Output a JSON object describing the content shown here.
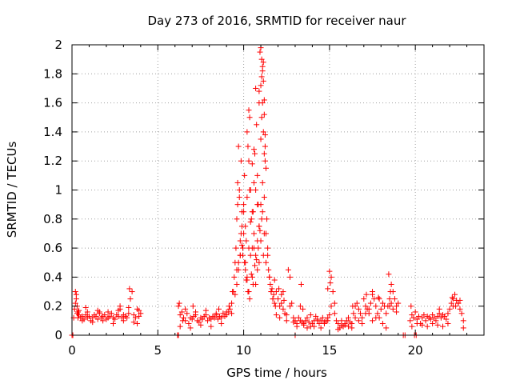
{
  "chart_data": {
    "type": "scatter",
    "title": "Day 273 of 2016, SRMTID for receiver naur",
    "xlabel": "GPS time / hours",
    "ylabel": "SRMTID / TECUs",
    "xlim": [
      0,
      24
    ],
    "ylim": [
      0,
      2
    ],
    "x_ticks": [
      "0",
      "5",
      "10",
      "15",
      "20"
    ],
    "y_ticks": [
      "0",
      "0.2",
      "0.4",
      "0.6",
      "0.8",
      "1",
      "1.2",
      "1.4",
      "1.6",
      "1.8",
      "2"
    ],
    "grid": true,
    "marker": "+",
    "color": "#ff0000",
    "series": [
      {
        "x": [
          0.1,
          0.15,
          0.2,
          0.25,
          0.3,
          0.35,
          0.4,
          0.5,
          0.6,
          0.7,
          0.8,
          0.9,
          1.0,
          1.1,
          1.2,
          1.3,
          1.4,
          1.5,
          1.6,
          1.7,
          1.8,
          1.9,
          2.0,
          2.1,
          2.2,
          2.3,
          2.4,
          2.5,
          2.6,
          2.7,
          2.8,
          2.9,
          3.0,
          3.1,
          3.2,
          3.3,
          3.4,
          3.5,
          3.6,
          3.7,
          3.8,
          3.9,
          4.0,
          0.2,
          0.3,
          0.4,
          0.6,
          0.9,
          1.2,
          1.5,
          1.8,
          2.1,
          2.4,
          2.7,
          3.0,
          3.3,
          3.6,
          3.9,
          0.25,
          0.35,
          0.8,
          1.6,
          2.8,
          3.35,
          3.8,
          6.2,
          6.3,
          6.4,
          6.5,
          6.6,
          6.7,
          6.8,
          6.9,
          7.0,
          7.1,
          7.2,
          7.3,
          7.4,
          7.5,
          7.6,
          7.7,
          7.8,
          7.9,
          8.0,
          8.1,
          8.2,
          8.3,
          8.4,
          8.5,
          8.6,
          8.7,
          8.8,
          8.9,
          9.0,
          9.1,
          9.2,
          9.3,
          6.3,
          6.6,
          6.9,
          7.2,
          7.5,
          7.8,
          8.1,
          8.4,
          8.7,
          9.0,
          9.3,
          6.25,
          6.45,
          7.05,
          8.55,
          9.15,
          9.35,
          9.4,
          9.45,
          9.5,
          9.55,
          9.6,
          9.65,
          9.7,
          9.75,
          9.8,
          9.85,
          9.9,
          9.95,
          10.0,
          10.05,
          10.1,
          10.15,
          10.2,
          10.25,
          10.3,
          10.35,
          10.4,
          10.45,
          10.5,
          10.55,
          10.6,
          10.65,
          10.7,
          10.75,
          10.8,
          10.85,
          10.9,
          10.95,
          11.0,
          11.05,
          11.1,
          11.15,
          11.2,
          11.25,
          11.3,
          11.35,
          11.4,
          11.45,
          11.5,
          11.55,
          11.6,
          11.65,
          11.7,
          11.75,
          11.8,
          11.85,
          9.5,
          9.6,
          9.7,
          9.8,
          9.9,
          10.0,
          10.1,
          10.2,
          10.3,
          10.4,
          10.5,
          10.6,
          10.7,
          10.8,
          10.9,
          11.0,
          11.1,
          11.2,
          11.3,
          11.4,
          11.5,
          11.6,
          11.7,
          9.6,
          9.7,
          9.8,
          9.9,
          10.0,
          10.1,
          10.2,
          10.3,
          10.4,
          10.5,
          10.6,
          10.7,
          10.8,
          10.9,
          11.0,
          11.1,
          11.2,
          11.3,
          9.65,
          9.75,
          9.85,
          9.95,
          10.05,
          10.15,
          10.25,
          10.35,
          10.45,
          10.55,
          10.65,
          10.75,
          10.85,
          10.95,
          11.05,
          11.15,
          10.2,
          10.3,
          10.35,
          10.5,
          10.6,
          10.7,
          10.8,
          10.9,
          11.0,
          11.05,
          11.1,
          11.15,
          11.2,
          11.25,
          10.9,
          11.0,
          11.05,
          11.1,
          11.15,
          11.2,
          11.25,
          11.8,
          11.9,
          12.0,
          12.1,
          12.2,
          12.3,
          12.4,
          12.5,
          12.6,
          12.7,
          12.8,
          12.9,
          13.0,
          13.1,
          13.2,
          13.3,
          13.4,
          13.5,
          13.6,
          13.7,
          13.8,
          13.9,
          14.0,
          14.1,
          14.2,
          14.3,
          14.4,
          14.5,
          14.6,
          14.7,
          14.8,
          14.9,
          15.0,
          15.1,
          15.2,
          15.3,
          15.4,
          15.5,
          15.6,
          15.7,
          15.8,
          15.9,
          16.0,
          16.1,
          16.2,
          16.3,
          16.4,
          16.5,
          16.6,
          16.7,
          16.8,
          16.9,
          17.0,
          17.1,
          17.2,
          17.3,
          17.4,
          17.5,
          17.6,
          17.7,
          17.8,
          17.9,
          18.0,
          18.1,
          18.2,
          18.3,
          18.4,
          18.5,
          18.6,
          18.7,
          18.8,
          18.9,
          19.0,
          11.9,
          12.1,
          12.3,
          12.5,
          12.7,
          12.9,
          13.1,
          13.3,
          13.5,
          13.7,
          13.9,
          14.1,
          14.3,
          14.5,
          14.7,
          14.9,
          15.1,
          15.3,
          15.5,
          15.7,
          15.9,
          16.1,
          16.3,
          16.5,
          16.7,
          16.9,
          17.1,
          17.3,
          17.5,
          17.7,
          17.9,
          18.1,
          18.3,
          18.5,
          18.7,
          18.9,
          12.05,
          12.2,
          12.35,
          13.35,
          13.45,
          14.9,
          15.0,
          15.05,
          16.35,
          17.15,
          17.5,
          17.85,
          18.45,
          18.55,
          18.6,
          19.7,
          19.8,
          19.9,
          20.0,
          20.1,
          20.2,
          20.3,
          20.4,
          20.5,
          20.6,
          20.7,
          20.8,
          20.9,
          21.0,
          21.1,
          21.2,
          21.3,
          21.4,
          21.5,
          21.6,
          21.7,
          21.8,
          21.9,
          22.0,
          22.1,
          22.2,
          22.3,
          22.4,
          22.5,
          22.6,
          22.7,
          22.8,
          19.8,
          20.1,
          20.4,
          20.7,
          21.0,
          21.3,
          21.6,
          21.9,
          22.2,
          22.5,
          22.8,
          19.75,
          21.4,
          22.15,
          22.35,
          22.6,
          0.0,
          0.05,
          6.15,
          6.2,
          13.0,
          19.3,
          19.4,
          19.95,
          20.05
        ],
        "y": [
          0.12,
          0.18,
          0.3,
          0.25,
          0.2,
          0.16,
          0.14,
          0.12,
          0.13,
          0.11,
          0.14,
          0.12,
          0.13,
          0.1,
          0.12,
          0.14,
          0.13,
          0.11,
          0.15,
          0.12,
          0.13,
          0.14,
          0.11,
          0.12,
          0.13,
          0.15,
          0.12,
          0.11,
          0.14,
          0.13,
          0.18,
          0.12,
          0.14,
          0.13,
          0.12,
          0.15,
          0.25,
          0.3,
          0.14,
          0.12,
          0.18,
          0.13,
          0.15,
          0.22,
          0.15,
          0.17,
          0.1,
          0.16,
          0.09,
          0.17,
          0.1,
          0.16,
          0.08,
          0.17,
          0.1,
          0.19,
          0.09,
          0.17,
          0.28,
          0.12,
          0.19,
          0.16,
          0.2,
          0.32,
          0.08,
          0.2,
          0.14,
          0.16,
          0.12,
          0.1,
          0.15,
          0.08,
          0.12,
          0.11,
          0.13,
          0.14,
          0.1,
          0.09,
          0.12,
          0.11,
          0.13,
          0.14,
          0.1,
          0.12,
          0.11,
          0.13,
          0.12,
          0.14,
          0.11,
          0.13,
          0.12,
          0.15,
          0.13,
          0.14,
          0.16,
          0.18,
          0.15,
          0.06,
          0.18,
          0.05,
          0.16,
          0.07,
          0.17,
          0.06,
          0.15,
          0.08,
          0.16,
          0.22,
          0.22,
          0.1,
          0.2,
          0.18,
          0.2,
          0.3,
          0.3,
          0.4,
          0.5,
          0.6,
          0.8,
          1.05,
          1.3,
          0.95,
          0.55,
          0.7,
          0.85,
          0.6,
          0.9,
          1.1,
          0.75,
          0.65,
          0.95,
          1.3,
          1.55,
          1.5,
          1.0,
          0.8,
          0.6,
          0.85,
          1.05,
          1.25,
          1.7,
          1.45,
          1.1,
          0.9,
          1.6,
          1.95,
          1.98,
          1.9,
          1.85,
          1.4,
          1.62,
          1.3,
          1.15,
          0.8,
          0.6,
          0.45,
          0.4,
          0.35,
          0.3,
          0.32,
          0.25,
          0.28,
          0.22,
          0.2,
          0.28,
          0.35,
          0.45,
          0.55,
          0.62,
          0.7,
          0.5,
          0.4,
          0.6,
          0.78,
          0.85,
          0.7,
          0.55,
          0.65,
          0.75,
          0.9,
          1.05,
          0.95,
          0.7,
          0.55,
          0.4,
          0.3,
          0.25,
          0.45,
          0.5,
          0.65,
          0.75,
          0.85,
          0.45,
          0.38,
          0.3,
          0.55,
          0.4,
          0.6,
          0.35,
          0.45,
          0.5,
          0.65,
          0.85,
          0.7,
          0.5,
          0.9,
          1.0,
          1.2,
          0.55,
          0.5,
          0.38,
          0.3,
          0.25,
          0.42,
          0.35,
          0.48,
          0.52,
          0.6,
          0.72,
          0.8,
          0.55,
          1.4,
          1.2,
          1.0,
          1.18,
          1.28,
          1.0,
          0.9,
          0.75,
          1.35,
          1.5,
          1.6,
          1.75,
          1.52,
          1.38,
          1.68,
          1.72,
          1.78,
          1.82,
          1.88,
          1.25,
          1.2,
          0.38,
          0.3,
          0.25,
          0.2,
          0.22,
          0.18,
          0.15,
          0.14,
          0.45,
          0.4,
          0.22,
          0.12,
          0.1,
          0.08,
          0.12,
          0.1,
          0.09,
          0.07,
          0.1,
          0.12,
          0.09,
          0.06,
          0.08,
          0.1,
          0.13,
          0.11,
          0.08,
          0.1,
          0.12,
          0.09,
          0.1,
          0.12,
          0.14,
          0.4,
          0.3,
          0.15,
          0.1,
          0.08,
          0.05,
          0.07,
          0.06,
          0.08,
          0.1,
          0.12,
          0.09,
          0.08,
          0.15,
          0.2,
          0.22,
          0.18,
          0.15,
          0.12,
          0.25,
          0.2,
          0.18,
          0.15,
          0.22,
          0.28,
          0.25,
          0.2,
          0.15,
          0.12,
          0.18,
          0.22,
          0.2,
          0.15,
          0.2,
          0.25,
          0.35,
          0.3,
          0.25,
          0.2,
          0.22,
          0.14,
          0.12,
          0.3,
          0.1,
          0.2,
          0.09,
          0.06,
          0.2,
          0.08,
          0.05,
          0.14,
          0.06,
          0.1,
          0.05,
          0.08,
          0.1,
          0.2,
          0.22,
          0.04,
          0.1,
          0.07,
          0.06,
          0.05,
          0.12,
          0.1,
          0.08,
          0.15,
          0.18,
          0.1,
          0.12,
          0.25,
          0.08,
          0.05,
          0.2,
          0.18,
          0.16,
          0.32,
          0.28,
          0.24,
          0.35,
          0.18,
          0.32,
          0.44,
          0.36,
          0.2,
          0.28,
          0.3,
          0.26,
          0.42,
          0.3,
          0.22,
          0.1,
          0.14,
          0.12,
          0.16,
          0.11,
          0.13,
          0.08,
          0.12,
          0.14,
          0.1,
          0.13,
          0.12,
          0.11,
          0.14,
          0.12,
          0.1,
          0.13,
          0.15,
          0.12,
          0.14,
          0.13,
          0.11,
          0.15,
          0.18,
          0.22,
          0.25,
          0.28,
          0.24,
          0.22,
          0.18,
          0.15,
          0.1,
          0.06,
          0.08,
          0.07,
          0.06,
          0.08,
          0.07,
          0.06,
          0.08,
          0.2,
          0.22,
          0.05,
          0.2,
          0.18,
          0.26,
          0.2,
          0.24,
          0.0,
          0.0,
          0.0,
          0.0,
          0.0,
          0.0,
          0.0,
          0.0,
          0.0
        ]
      }
    ]
  }
}
